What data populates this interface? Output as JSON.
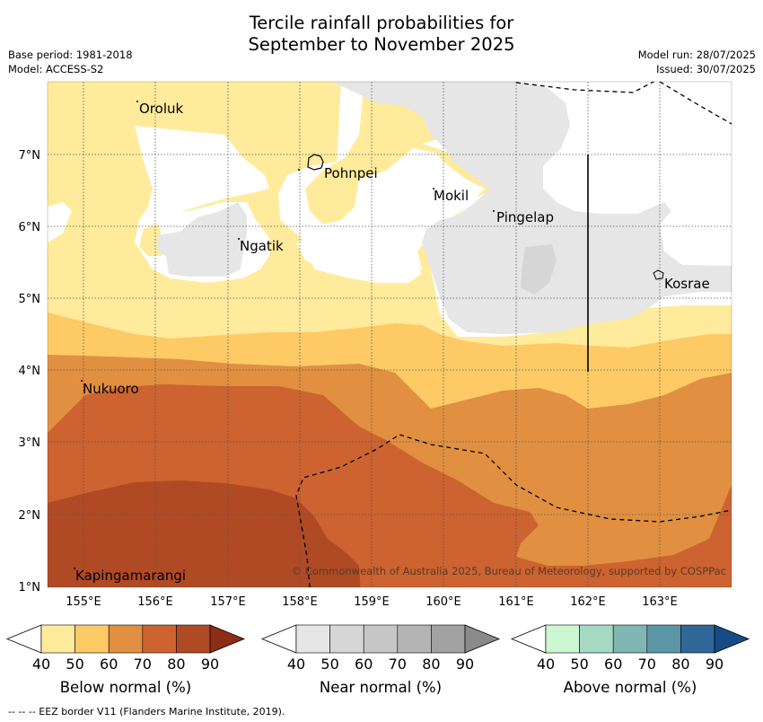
{
  "title": {
    "line1": "Tercile rainfall probabilities for",
    "line2": "September to November 2025"
  },
  "meta": {
    "base_period": "Base period: 1981-2018",
    "model": "Model: ACCESS-S2",
    "model_run": "Model run: 28/07/2025",
    "issued": "Issued: 30/07/2025"
  },
  "map": {
    "lon_ticks": [
      "155°E",
      "156°E",
      "157°E",
      "158°E",
      "159°E",
      "160°E",
      "161°E",
      "162°E",
      "163°E"
    ],
    "lat_ticks": [
      "7°N",
      "6°N",
      "5°N",
      "4°N",
      "3°N",
      "2°N",
      "1°N"
    ],
    "places": [
      "Oroluk",
      "Pohnpei",
      "Mokil",
      "Pingelap",
      "Ngatik",
      "Kosrae",
      "Nukuoro",
      "Kapingamarangi"
    ],
    "copyright": "© Commonwealth of Australia 2025, Bureau of Meteorology, supported by COSPPac"
  },
  "legends": [
    {
      "label": "Below normal (%)",
      "ticks": [
        "40",
        "50",
        "60",
        "70",
        "80",
        "90"
      ],
      "colors": [
        "#ffeb9b",
        "#fdca66",
        "#e09040",
        "#cc6330",
        "#b04a25",
        "#8b2e15"
      ]
    },
    {
      "label": "Near normal (%)",
      "ticks": [
        "40",
        "50",
        "60",
        "70",
        "80",
        "90"
      ],
      "colors": [
        "#e6e6e6",
        "#d6d6d6",
        "#c6c6c6",
        "#b4b4b4",
        "#a2a2a2",
        "#8a8a8a"
      ]
    },
    {
      "label": "Above normal (%)",
      "ticks": [
        "40",
        "50",
        "60",
        "70",
        "80",
        "90"
      ],
      "colors": [
        "#cbf7d1",
        "#a6d9c1",
        "#80b7b2",
        "#5a96a6",
        "#2f6799",
        "#174b87"
      ]
    }
  ],
  "footnote": "--  --  -- EEZ border V11 (Flanders Marine Institute, 2019)."
}
